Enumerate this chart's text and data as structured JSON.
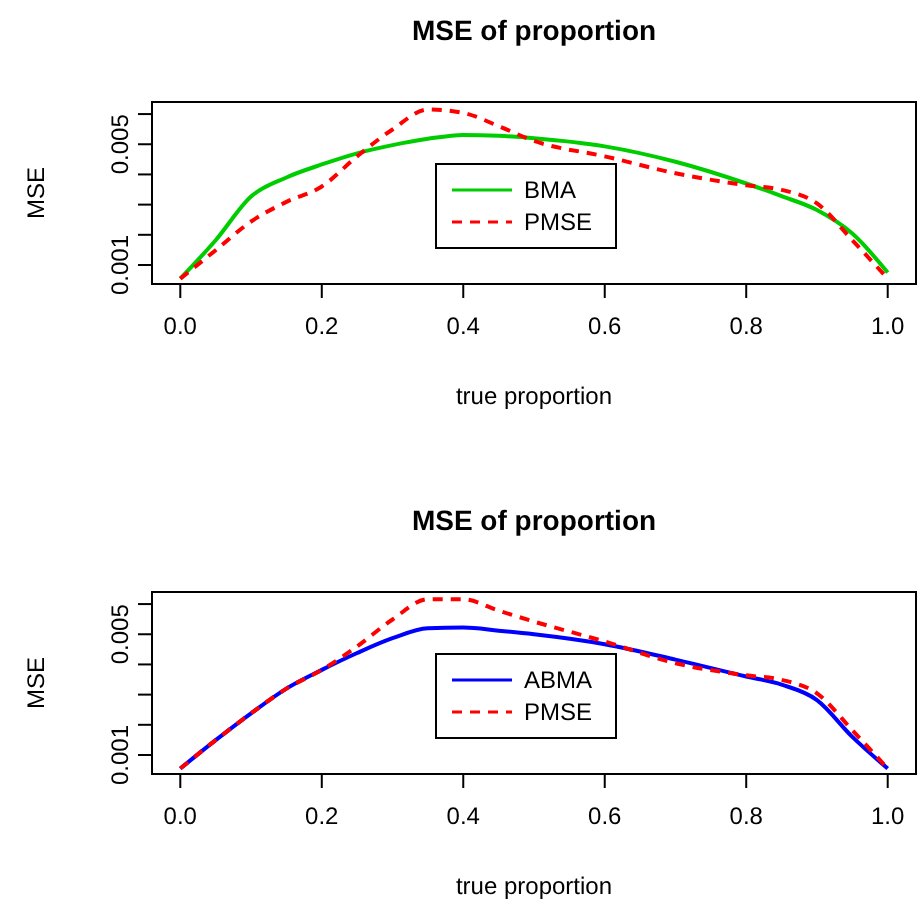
{
  "chart_data": [
    {
      "type": "line",
      "title": "MSE of proportion",
      "xlabel": "true proportion",
      "ylabel": "MSE",
      "x": [
        0,
        0.05,
        0.1,
        0.15,
        0.2,
        0.25,
        0.3,
        0.35,
        0.4,
        0.45,
        0.5,
        0.6,
        0.7,
        0.8,
        0.85,
        0.9,
        0.95,
        1
      ],
      "xlim": [
        -0.04,
        1.04
      ],
      "xticks": [
        {
          "value": 0,
          "label": "0.0"
        },
        {
          "value": 0.2,
          "label": "0.2"
        },
        {
          "value": 0.4,
          "label": "0.4"
        },
        {
          "value": 0.6,
          "label": "0.6"
        },
        {
          "value": 0.8,
          "label": "0.8"
        },
        {
          "value": 1,
          "label": "1.0"
        }
      ],
      "ylim": [
        0.00037,
        0.0064
      ],
      "yticks": [
        {
          "value": 0.001,
          "label": "0.001"
        },
        {
          "value": 0.002,
          "label": null
        },
        {
          "value": 0.003,
          "label": null
        },
        {
          "value": 0.004,
          "label": null
        },
        {
          "value": 0.005,
          "label": "0.005"
        },
        {
          "value": 0.006,
          "label": null
        }
      ],
      "legend": "center",
      "grid": false,
      "series": [
        {
          "name": "BMA",
          "color": "#00cd00",
          "line_style": "solid",
          "values": [
            0.00055,
            0.00182,
            0.00327,
            0.0039,
            0.00433,
            0.0047,
            0.00497,
            0.00518,
            0.00531,
            0.00528,
            0.0052,
            0.00493,
            0.00442,
            0.0037,
            0.00328,
            0.00282,
            0.00204,
            0.00075
          ]
        },
        {
          "name": "PMSE",
          "color": "#ff0000",
          "line_style": "dashed",
          "values": [
            0.00055,
            0.00149,
            0.00244,
            0.00309,
            0.0036,
            0.0046,
            0.00549,
            0.00615,
            0.00604,
            0.0056,
            0.00511,
            0.0046,
            0.00404,
            0.00364,
            0.00349,
            0.00304,
            0.00182,
            0.00055
          ]
        }
      ]
    },
    {
      "type": "line",
      "title": "MSE of proportion",
      "xlabel": "true proportion",
      "ylabel": "MSE",
      "x": [
        0,
        0.05,
        0.1,
        0.15,
        0.2,
        0.25,
        0.3,
        0.35,
        0.4,
        0.45,
        0.5,
        0.6,
        0.7,
        0.8,
        0.85,
        0.9,
        0.95,
        1
      ],
      "xlim": [
        -0.04,
        1.04
      ],
      "xticks": [
        {
          "value": 0,
          "label": "0.0"
        },
        {
          "value": 0.2,
          "label": "0.2"
        },
        {
          "value": 0.4,
          "label": "0.4"
        },
        {
          "value": 0.6,
          "label": "0.6"
        },
        {
          "value": 0.8,
          "label": "0.8"
        },
        {
          "value": 1,
          "label": "1.0"
        }
      ],
      "ylim": [
        0.00037,
        0.0064
      ],
      "yticks": [
        {
          "value": 0.001,
          "label": "0.001"
        },
        {
          "value": 0.002,
          "label": null
        },
        {
          "value": 0.003,
          "label": null
        },
        {
          "value": 0.004,
          "label": null
        },
        {
          "value": 0.005,
          "label": "0.005"
        },
        {
          "value": 0.006,
          "label": null
        }
      ],
      "legend": "center",
      "grid": false,
      "series": [
        {
          "name": "ABMA",
          "color": "#0000ff",
          "line_style": "solid",
          "values": [
            0.00055,
            0.00149,
            0.00238,
            0.0032,
            0.00382,
            0.00438,
            0.00487,
            0.0052,
            0.00522,
            0.00512,
            0.005,
            0.00467,
            0.00416,
            0.0036,
            0.00333,
            0.00282,
            0.0016,
            0.00055
          ]
        },
        {
          "name": "PMSE",
          "color": "#ff0000",
          "line_style": "dashed",
          "values": [
            0.00055,
            0.00149,
            0.00238,
            0.0032,
            0.00382,
            0.0046,
            0.00549,
            0.00616,
            0.00616,
            0.00578,
            0.00542,
            0.00476,
            0.00404,
            0.00364,
            0.00349,
            0.00304,
            0.00182,
            0.00055
          ]
        }
      ]
    }
  ]
}
